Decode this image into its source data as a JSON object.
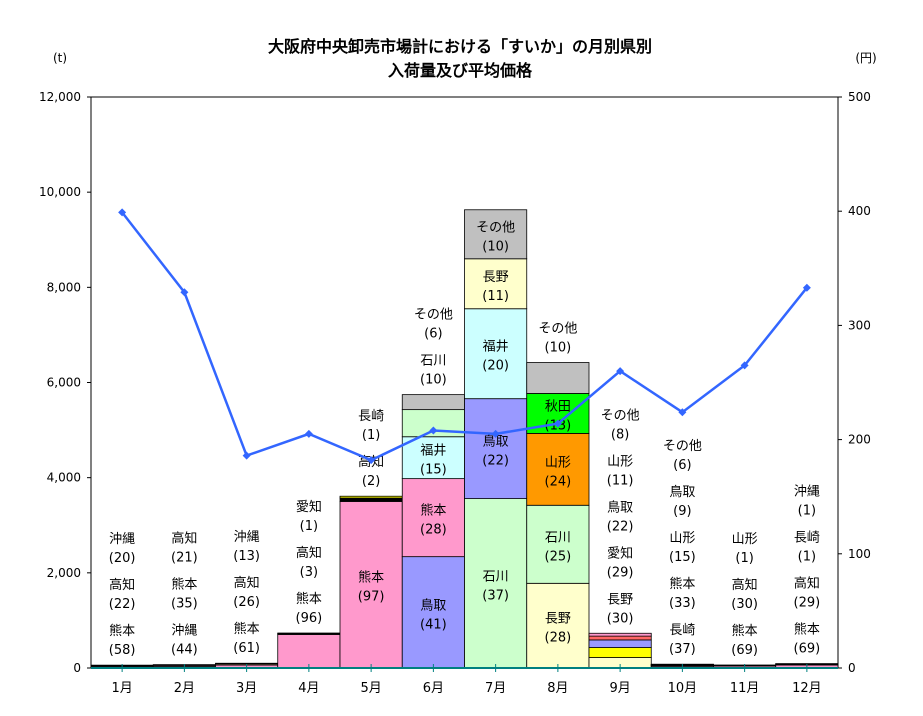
{
  "chart_data": {
    "type": "bar",
    "title": [
      "大阪府中央卸売市場計における「すいか」の月別県別",
      "入荷量及び平均価格"
    ],
    "ylabel_left": "(t)",
    "ylabel_right": "(円)",
    "ylim_left": [
      0,
      12000
    ],
    "ylim_right": [
      0,
      500
    ],
    "yticks_left": [
      "0",
      "2,000",
      "4,000",
      "6,000",
      "8,000",
      "10,000",
      "12,000"
    ],
    "yticks_right": [
      "0",
      "100",
      "200",
      "300",
      "400",
      "500"
    ],
    "categories": [
      "1月",
      "2月",
      "3月",
      "4月",
      "5月",
      "6月",
      "7月",
      "8月",
      "9月",
      "10月",
      "11月",
      "12月"
    ],
    "price_line": {
      "name": "平均価格",
      "color": "#3366ff",
      "values": [
        399,
        329,
        186,
        205,
        182,
        208,
        205,
        214,
        260,
        224,
        265,
        333
      ]
    },
    "bars": [
      {
        "segments": [
          {
            "name": "熊本",
            "pct": 58,
            "value": 35,
            "color": "#ff99cc"
          },
          {
            "name": "高知",
            "pct": 22,
            "value": 13,
            "color": "#cc99ff"
          },
          {
            "name": "沖縄",
            "pct": 20,
            "value": 12,
            "color": "#ff6666"
          }
        ]
      },
      {
        "segments": [
          {
            "name": "沖縄",
            "pct": 44,
            "value": 31,
            "color": "#33cccc"
          },
          {
            "name": "熊本",
            "pct": 35,
            "value": 25,
            "color": "#ff99cc"
          },
          {
            "name": "高知",
            "pct": 21,
            "value": 15,
            "color": "#ccffff"
          }
        ]
      },
      {
        "segments": [
          {
            "name": "熊本",
            "pct": 61,
            "value": 61,
            "color": "#ff99cc"
          },
          {
            "name": "高知",
            "pct": 26,
            "value": 26,
            "color": "#ffcc99"
          },
          {
            "name": "沖縄",
            "pct": 13,
            "value": 13,
            "color": "#ff6666"
          }
        ]
      },
      {
        "segments": [
          {
            "name": "熊本",
            "pct": 96,
            "value": 705,
            "color": "#ff99cc"
          },
          {
            "name": "高知",
            "pct": 3,
            "value": 22,
            "color": "#000000"
          },
          {
            "name": "愛知",
            "pct": 1,
            "value": 8,
            "color": "#ffff00"
          }
        ]
      },
      {
        "segments": [
          {
            "name": "熊本",
            "pct": 97,
            "value": 3500,
            "color": "#ff99cc"
          },
          {
            "name": "高知",
            "pct": 2,
            "value": 72,
            "color": "#000000"
          },
          {
            "name": "長崎",
            "pct": 1,
            "value": 38,
            "color": "#ffff00"
          }
        ]
      },
      {
        "segments": [
          {
            "name": "鳥取",
            "pct": 41,
            "value": 2340,
            "color": "#9999ff"
          },
          {
            "name": "熊本",
            "pct": 28,
            "value": 1640,
            "color": "#ff99cc"
          },
          {
            "name": "福井",
            "pct": 15,
            "value": 880,
            "color": "#ccffff"
          },
          {
            "name": "石川",
            "pct": 10,
            "value": 570,
            "color": "#ccffcc"
          },
          {
            "name": "その他",
            "pct": 6,
            "value": 315,
            "color": "#c0c0c0"
          }
        ]
      },
      {
        "segments": [
          {
            "name": "石川",
            "pct": 37,
            "value": 3560,
            "color": "#ccffcc"
          },
          {
            "name": "鳥取",
            "pct": 22,
            "value": 2100,
            "color": "#9999ff"
          },
          {
            "name": "福井",
            "pct": 20,
            "value": 1890,
            "color": "#ccffff"
          },
          {
            "name": "長野",
            "pct": 11,
            "value": 1050,
            "color": "#ffffcc"
          },
          {
            "name": "その他",
            "pct": 10,
            "value": 1030,
            "color": "#c0c0c0"
          }
        ]
      },
      {
        "segments": [
          {
            "name": "長野",
            "pct": 28,
            "value": 1780,
            "color": "#ffffcc"
          },
          {
            "name": "石川",
            "pct": 25,
            "value": 1640,
            "color": "#ccffcc"
          },
          {
            "name": "山形",
            "pct": 24,
            "value": 1510,
            "color": "#ff9900"
          },
          {
            "name": "秋田",
            "pct": 13,
            "value": 840,
            "color": "#00ff00"
          },
          {
            "name": "その他",
            "pct": 10,
            "value": 650,
            "color": "#c0c0c0"
          }
        ]
      },
      {
        "segments": [
          {
            "name": "長野",
            "pct": 30,
            "value": 220,
            "color": "#ffffcc"
          },
          {
            "name": "愛知",
            "pct": 29,
            "value": 210,
            "color": "#ffff00"
          },
          {
            "name": "鳥取",
            "pct": 22,
            "value": 160,
            "color": "#9999ff"
          },
          {
            "name": "山形",
            "pct": 11,
            "value": 80,
            "color": "#ff6666"
          },
          {
            "name": "その他",
            "pct": 8,
            "value": 60,
            "color": "#ff99cc"
          }
        ]
      },
      {
        "segments": [
          {
            "name": "長崎",
            "pct": 37,
            "value": 30,
            "color": "#000000"
          },
          {
            "name": "熊本",
            "pct": 33,
            "value": 26,
            "color": "#ff99cc"
          },
          {
            "name": "山形",
            "pct": 15,
            "value": 12,
            "color": "#ff9900"
          },
          {
            "name": "鳥取",
            "pct": 9,
            "value": 7,
            "color": "#9999ff"
          },
          {
            "name": "その他",
            "pct": 6,
            "value": 5,
            "color": "#c0c0c0"
          }
        ]
      },
      {
        "segments": [
          {
            "name": "熊本",
            "pct": 69,
            "value": 42,
            "color": "#ff99cc"
          },
          {
            "name": "高知",
            "pct": 30,
            "value": 18,
            "color": "#cc6699"
          },
          {
            "name": "山形",
            "pct": 1,
            "value": 1,
            "color": "#ff9900"
          }
        ]
      },
      {
        "segments": [
          {
            "name": "熊本",
            "pct": 69,
            "value": 62,
            "color": "#ff99cc"
          },
          {
            "name": "高知",
            "pct": 29,
            "value": 26,
            "color": "#ffcc99"
          },
          {
            "name": "長崎",
            "pct": 1,
            "value": 1,
            "color": "#000000"
          },
          {
            "name": "沖縄",
            "pct": 1,
            "value": 1,
            "color": "#ff6666"
          }
        ]
      }
    ]
  }
}
